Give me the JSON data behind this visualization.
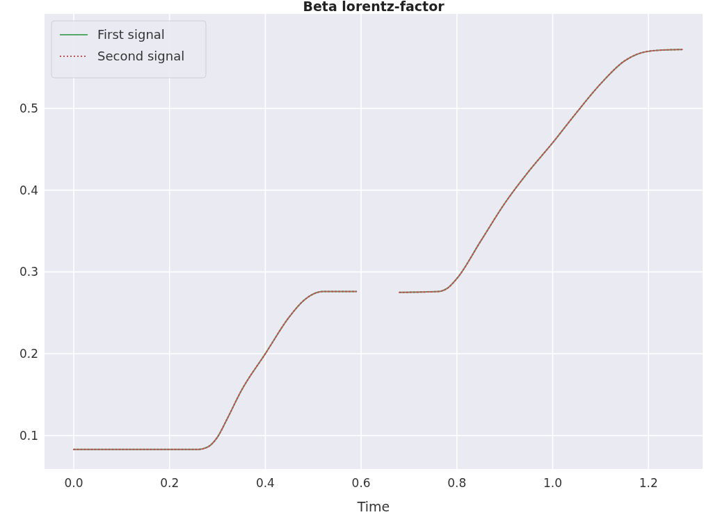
{
  "chart_data": {
    "type": "line",
    "title": "Beta lorentz-factor",
    "xlabel": "Time",
    "series": [
      {
        "name": "First signal",
        "color": "#55a868",
        "line_style": "solid",
        "x": [
          0,
          0.26,
          0.28,
          0.3,
          0.32,
          0.35,
          0.4,
          0.45,
          0.48,
          0.5,
          0.52,
          0.59
        ],
        "values": [
          0.083,
          0.083,
          0.086,
          0.098,
          0.12,
          0.155,
          0.2,
          0.245,
          0.265,
          0.273,
          0.276,
          0.276
        ]
      },
      {
        "color": "#55a868",
        "line_style": "solid",
        "x": [
          0.68,
          0.76,
          0.78,
          0.8,
          0.85,
          0.9,
          0.95,
          1.0,
          1.05,
          1.1,
          1.15,
          1.18,
          1.22,
          1.27
        ],
        "values": [
          0.275,
          0.276,
          0.28,
          0.292,
          0.338,
          0.384,
          0.423,
          0.458,
          0.495,
          0.53,
          0.558,
          0.567,
          0.571,
          0.572
        ]
      },
      {
        "name": "Second signal",
        "color": "#c44e52",
        "line_style": "dotted",
        "x": [
          0,
          0.26,
          0.28,
          0.3,
          0.32,
          0.35,
          0.4,
          0.45,
          0.48,
          0.5,
          0.52,
          0.59
        ],
        "values": [
          0.083,
          0.083,
          0.086,
          0.098,
          0.12,
          0.155,
          0.2,
          0.245,
          0.265,
          0.273,
          0.276,
          0.276
        ]
      },
      {
        "color": "#c44e52",
        "line_style": "dotted",
        "x": [
          0.68,
          0.76,
          0.78,
          0.8,
          0.85,
          0.9,
          0.95,
          1.0,
          1.05,
          1.1,
          1.15,
          1.18,
          1.22,
          1.27
        ],
        "values": [
          0.275,
          0.276,
          0.28,
          0.292,
          0.338,
          0.384,
          0.423,
          0.458,
          0.495,
          0.53,
          0.558,
          0.567,
          0.571,
          0.572
        ]
      }
    ],
    "xlim": [
      -0.061,
      1.313
    ],
    "ylim": [
      0.059,
      0.6155
    ],
    "xticks": [
      {
        "value": 0,
        "label": "0.0"
      },
      0.2,
      0.4,
      0.6,
      0.8,
      {
        "value": 1,
        "label": "1.0"
      },
      1.2
    ],
    "yticks": [
      0.1,
      0.2,
      0.3,
      0.4,
      0.5
    ],
    "grid": true,
    "legend": "top left"
  }
}
